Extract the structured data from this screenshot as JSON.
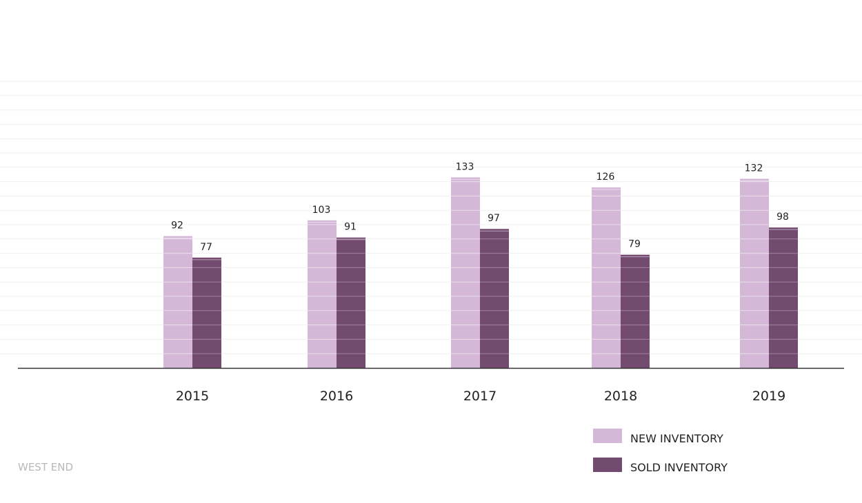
{
  "chart_data": {
    "type": "bar",
    "categories": [
      "2015",
      "2016",
      "2017",
      "2018",
      "2019"
    ],
    "series": [
      {
        "name": "NEW INVENTORY",
        "values": [
          92,
          103,
          133,
          126,
          132
        ],
        "color": "#d5b8d7"
      },
      {
        "name": "SOLD INVENTORY",
        "values": [
          77,
          91,
          97,
          79,
          98
        ],
        "color": "#744b70"
      }
    ],
    "ylim": [
      0,
      200
    ],
    "grid": true,
    "gridline_step": 10,
    "legend": "bottom-right"
  },
  "footer": {
    "region": "WEST END"
  },
  "colors": {
    "axis": "#333333",
    "grid": "#f0f0f0",
    "bar_stripe": "#ffffff"
  }
}
